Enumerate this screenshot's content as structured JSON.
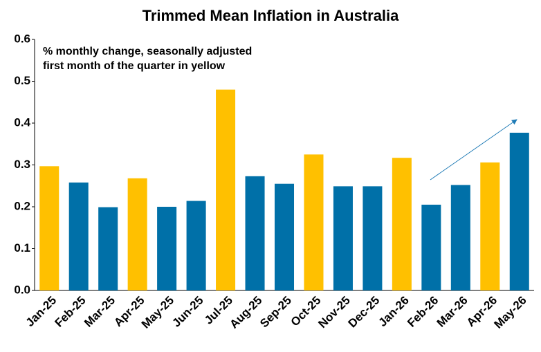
{
  "chart_data": {
    "type": "bar",
    "title": "Trimmed Mean Inflation in Australia",
    "annotations": [
      "% monthly change, seasonally adjusted",
      "first month of the quarter in yellow"
    ],
    "categories": [
      "Jan-25",
      "Feb-25",
      "Mar-25",
      "Apr-25",
      "May-25",
      "Jun-25",
      "Jul-25",
      "Aug-25",
      "Sep-25",
      "Oct-25",
      "Nov-25",
      "Dec-25",
      "Jan-26",
      "Feb-26",
      "Mar-26",
      "Apr-26",
      "May-26"
    ],
    "values": [
      0.297,
      0.258,
      0.199,
      0.268,
      0.2,
      0.214,
      0.48,
      0.273,
      0.255,
      0.325,
      0.249,
      0.249,
      0.317,
      0.205,
      0.252,
      0.306,
      0.377
    ],
    "colors": [
      "#FFC000",
      "#0070A8",
      "#0070A8",
      "#FFC000",
      "#0070A8",
      "#0070A8",
      "#FFC000",
      "#0070A8",
      "#0070A8",
      "#FFC000",
      "#0070A8",
      "#0070A8",
      "#FFC000",
      "#0070A8",
      "#0070A8",
      "#FFC000",
      "#0070A8"
    ],
    "ylim": [
      0,
      0.6
    ],
    "yticks": [
      {
        "value": 0,
        "label": "0.0"
      },
      0.1,
      0.2,
      0.3,
      0.4,
      0.5,
      0.6
    ],
    "grid": false
  }
}
